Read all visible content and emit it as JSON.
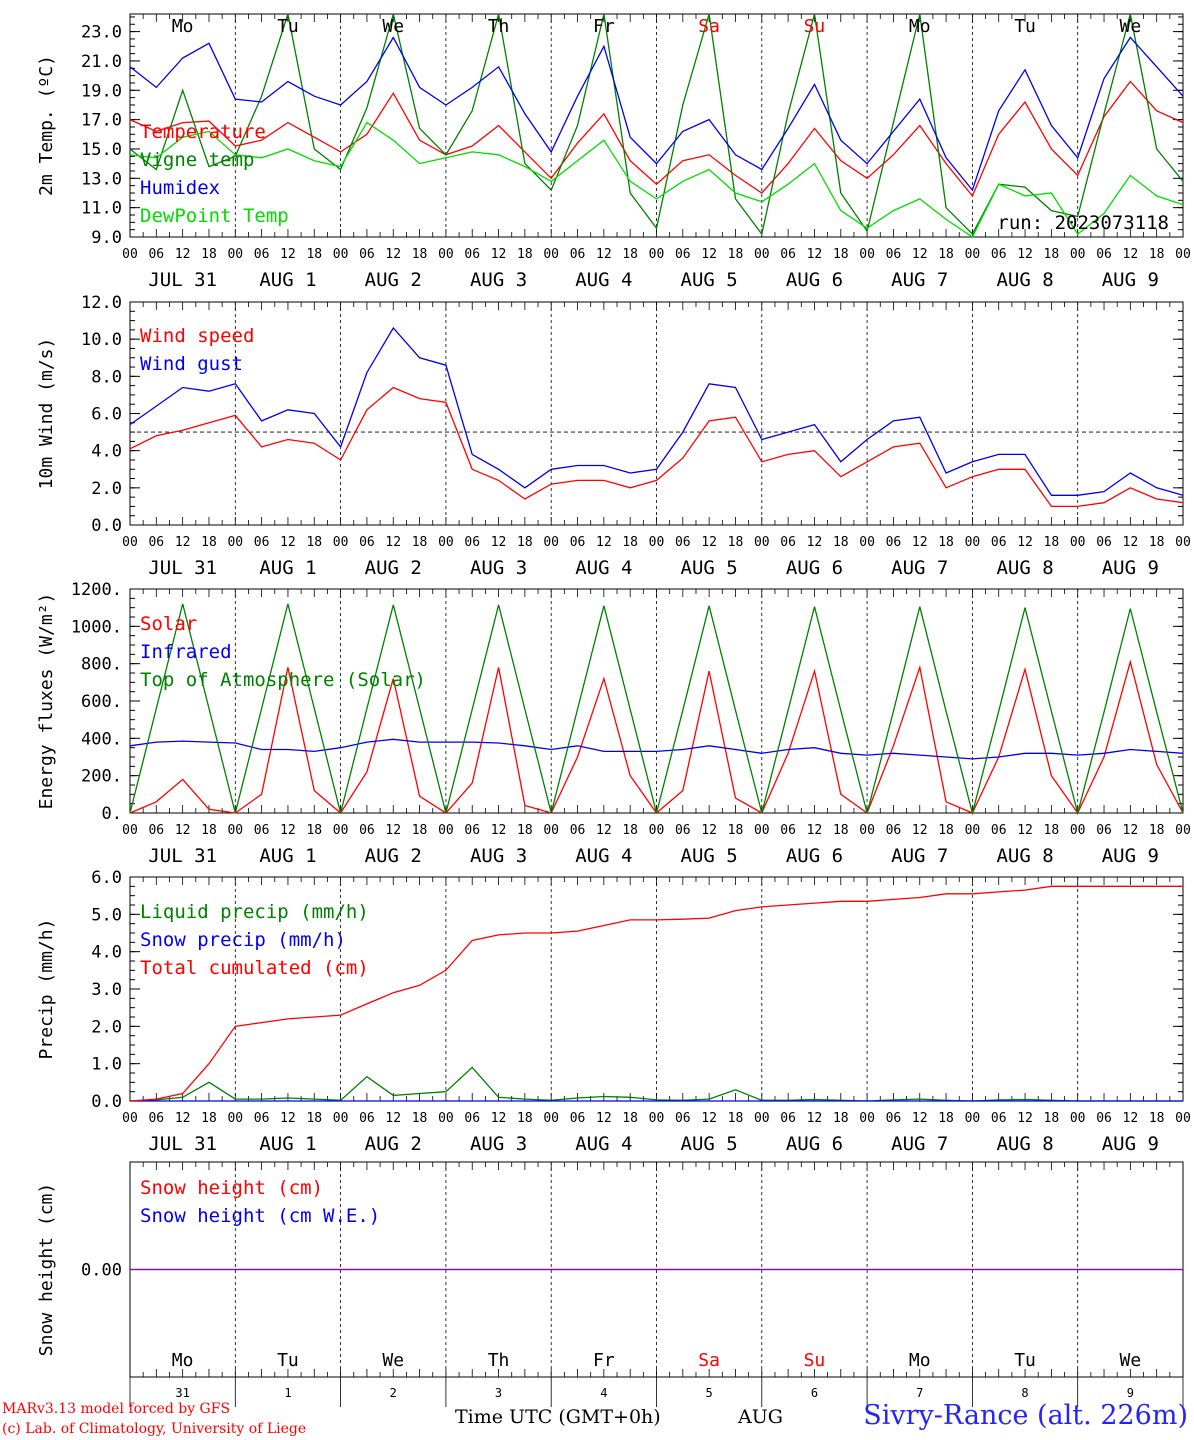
{
  "layout_note": "",
  "colors": {
    "red": "#ff0000",
    "blue": "#0000ee",
    "green": "#008000",
    "lightgreen": "#00dd00",
    "purple": "#9000c0"
  },
  "weekdays": [
    {
      "label": "Mo",
      "weekend": false
    },
    {
      "label": "Tu",
      "weekend": false
    },
    {
      "label": "We",
      "weekend": false
    },
    {
      "label": "Th",
      "weekend": false
    },
    {
      "label": "Fr",
      "weekend": false
    },
    {
      "label": "Sa",
      "weekend": true
    },
    {
      "label": "Su",
      "weekend": true
    },
    {
      "label": "Mo",
      "weekend": false
    },
    {
      "label": "Tu",
      "weekend": false
    },
    {
      "label": "We",
      "weekend": false
    }
  ],
  "day_labels": [
    "JUL 31",
    "AUG  1",
    "AUG  2",
    "AUG  3",
    "AUG  4",
    "AUG  5",
    "AUG  6",
    "AUG  7",
    "AUG  8",
    "AUG  9"
  ],
  "hour_ticks": [
    "00",
    "06",
    "12",
    "18"
  ],
  "day_numbers": [
    "31",
    "1",
    "2",
    "3",
    "4",
    "5",
    "6",
    "7",
    "8",
    "9"
  ],
  "footer": {
    "credit_line1": "MARv3.13 model forced by GFS",
    "credit_line2": "(c) Lab. of Climatology, University of Liege",
    "xlabel": "Time UTC (GMT+0h)",
    "month": "AUG",
    "station": "Sivry-Rance (alt. 226m)"
  },
  "chart_data": [
    {
      "type": "line",
      "title": "",
      "ylabel": "2m Temp. (ºC)",
      "ylim": [
        9.0,
        24.2
      ],
      "yticks": [
        "9.0",
        "11.0",
        "13.0",
        "15.0",
        "17.0",
        "19.0",
        "21.0",
        "23.0"
      ],
      "ytick_values": [
        9,
        11,
        13,
        15,
        17,
        19,
        21,
        23
      ],
      "run_label": "run: 2023073118",
      "x": [
        0,
        6,
        12,
        18,
        24,
        30,
        36,
        42,
        48,
        54,
        60,
        66,
        72,
        78,
        84,
        90,
        96,
        102,
        108,
        114,
        120,
        126,
        132,
        138,
        144,
        150,
        156,
        162,
        168,
        174,
        180,
        186,
        192,
        198,
        204,
        210,
        216,
        222,
        228,
        234,
        240
      ],
      "series": [
        {
          "name": "Temperature",
          "color": "#ff0000",
          "values": [
            17.0,
            16.2,
            16.8,
            16.9,
            15.2,
            15.6,
            16.8,
            15.8,
            14.8,
            16.0,
            18.8,
            15.6,
            14.6,
            15.2,
            16.6,
            14.8,
            13.0,
            15.4,
            17.4,
            14.2,
            12.6,
            14.2,
            14.6,
            13.2,
            12.0,
            14.0,
            16.4,
            14.2,
            13.0,
            14.6,
            16.6,
            14.0,
            11.8,
            16.0,
            18.2,
            15.0,
            13.2,
            17.2,
            19.6,
            17.6,
            16.8
          ]
        },
        {
          "name": "Vigne temp",
          "color": "#008000",
          "values": [
            15.0,
            13.6,
            19.0,
            13.8,
            14.5,
            18.6,
            24.2,
            15.0,
            13.6,
            17.8,
            24.2,
            16.4,
            14.6,
            17.6,
            24.2,
            14.0,
            12.2,
            16.6,
            24.2,
            12.0,
            9.6,
            18.0,
            24.2,
            11.6,
            9.2,
            17.4,
            24.2,
            12.0,
            9.4,
            16.8,
            24.2,
            11.0,
            9.2,
            12.6,
            12.4,
            10.8,
            10.4,
            17.4,
            24.2,
            15.0,
            12.8
          ]
        },
        {
          "name": "Humidex",
          "color": "#0000ee",
          "values": [
            20.6,
            19.2,
            21.2,
            22.2,
            18.4,
            18.2,
            19.6,
            18.6,
            18.0,
            19.6,
            22.6,
            19.2,
            18.0,
            19.2,
            20.6,
            17.4,
            14.8,
            18.6,
            22.0,
            15.8,
            14.0,
            16.2,
            17.0,
            14.6,
            13.6,
            16.4,
            19.4,
            15.6,
            14.0,
            16.2,
            18.4,
            14.4,
            12.2,
            17.6,
            20.4,
            16.6,
            14.4,
            19.8,
            22.6,
            20.6,
            18.6
          ]
        },
        {
          "name": "DewPoint Temp",
          "color": "#00dd00",
          "values": [
            14.6,
            14.4,
            15.8,
            16.2,
            14.6,
            14.4,
            15.0,
            14.2,
            13.8,
            16.8,
            15.6,
            14.0,
            14.4,
            14.8,
            14.6,
            13.8,
            12.8,
            14.2,
            15.6,
            12.8,
            11.6,
            12.8,
            13.6,
            12.0,
            11.4,
            12.6,
            14.0,
            10.8,
            9.6,
            10.8,
            11.6,
            10.2,
            8.8,
            12.6,
            11.8,
            12.0,
            9.2,
            10.6,
            13.2,
            11.8,
            11.2
          ]
        }
      ]
    },
    {
      "type": "line",
      "title": "",
      "ylabel": "10m Wind (m/s)",
      "ylim": [
        0.0,
        12.0
      ],
      "yticks": [
        "0.0",
        "2.0",
        "4.0",
        "6.0",
        "8.0",
        "10.0",
        "12.0"
      ],
      "ytick_values": [
        0,
        2,
        4,
        6,
        8,
        10,
        12
      ],
      "reference_y": 5.0,
      "x": [
        0,
        6,
        12,
        18,
        24,
        30,
        36,
        42,
        48,
        54,
        60,
        66,
        72,
        78,
        84,
        90,
        96,
        102,
        108,
        114,
        120,
        126,
        132,
        138,
        144,
        150,
        156,
        162,
        168,
        174,
        180,
        186,
        192,
        198,
        204,
        210,
        216,
        222,
        228,
        234,
        240
      ],
      "series": [
        {
          "name": "Wind speed",
          "color": "#ff0000",
          "values": [
            4.1,
            4.8,
            5.1,
            5.5,
            5.9,
            4.2,
            4.6,
            4.4,
            3.5,
            6.2,
            7.4,
            6.8,
            6.6,
            3.0,
            2.4,
            1.4,
            2.2,
            2.4,
            2.4,
            2.0,
            2.4,
            3.6,
            5.6,
            5.8,
            3.4,
            3.8,
            4.0,
            2.6,
            3.4,
            4.2,
            4.4,
            2.0,
            2.6,
            3.0,
            3.0,
            1.0,
            1.0,
            1.2,
            2.0,
            1.4,
            1.2
          ]
        },
        {
          "name": "Wind gust",
          "color": "#0000ee",
          "values": [
            5.4,
            6.4,
            7.4,
            7.2,
            7.6,
            5.6,
            6.2,
            6.0,
            4.2,
            8.2,
            10.6,
            9.0,
            8.6,
            3.8,
            3.0,
            2.0,
            3.0,
            3.2,
            3.2,
            2.8,
            3.0,
            5.0,
            7.6,
            7.4,
            4.6,
            5.0,
            5.4,
            3.4,
            4.6,
            5.6,
            5.8,
            2.8,
            3.4,
            3.8,
            3.8,
            1.6,
            1.6,
            1.8,
            2.8,
            2.0,
            1.6
          ]
        }
      ]
    },
    {
      "type": "line",
      "title": "",
      "ylabel": "Energy fluxes (W/m²)",
      "ylim": [
        0,
        1200
      ],
      "yticks": [
        "0.",
        "200.",
        "400.",
        "600.",
        "800.",
        "1000.",
        "1200."
      ],
      "ytick_values": [
        0,
        200,
        400,
        600,
        800,
        1000,
        1200
      ],
      "x": [
        0,
        6,
        12,
        18,
        24,
        30,
        36,
        42,
        48,
        54,
        60,
        66,
        72,
        78,
        84,
        90,
        96,
        102,
        108,
        114,
        120,
        126,
        132,
        138,
        144,
        150,
        156,
        162,
        168,
        174,
        180,
        186,
        192,
        198,
        204,
        210,
        216,
        222,
        228,
        234,
        240
      ],
      "series": [
        {
          "name": "Solar",
          "color": "#ff0000",
          "values": [
            0,
            60,
            180,
            20,
            0,
            100,
            780,
            120,
            0,
            220,
            720,
            90,
            0,
            160,
            780,
            40,
            0,
            300,
            720,
            200,
            0,
            120,
            760,
            80,
            0,
            320,
            760,
            100,
            0,
            360,
            780,
            60,
            0,
            300,
            770,
            200,
            0,
            300,
            810,
            260,
            0
          ]
        },
        {
          "name": "Infrared",
          "color": "#0000ee",
          "values": [
            360,
            380,
            385,
            380,
            375,
            340,
            340,
            330,
            350,
            380,
            395,
            380,
            380,
            380,
            375,
            360,
            340,
            360,
            330,
            330,
            330,
            340,
            360,
            340,
            320,
            340,
            350,
            320,
            310,
            320,
            310,
            300,
            290,
            300,
            320,
            320,
            310,
            320,
            340,
            330,
            320
          ]
        },
        {
          "name": "Top of Atmosphere (Solar)",
          "color": "#008000",
          "values": [
            0,
            560,
            1120,
            560,
            0,
            560,
            1120,
            560,
            0,
            560,
            1115,
            560,
            0,
            555,
            1115,
            555,
            0,
            555,
            1110,
            555,
            0,
            550,
            1110,
            550,
            0,
            550,
            1105,
            550,
            0,
            545,
            1105,
            545,
            0,
            545,
            1100,
            545,
            0,
            540,
            1095,
            540,
            0
          ]
        }
      ]
    },
    {
      "type": "line",
      "title": "",
      "ylabel": "Precip (mm/h)",
      "ylim": [
        0.0,
        6.0
      ],
      "yticks": [
        "0.0",
        "1.0",
        "2.0",
        "3.0",
        "4.0",
        "5.0",
        "6.0"
      ],
      "ytick_values": [
        0,
        1,
        2,
        3,
        4,
        5,
        6
      ],
      "x": [
        0,
        6,
        12,
        18,
        24,
        30,
        36,
        42,
        48,
        54,
        60,
        66,
        72,
        78,
        84,
        90,
        96,
        102,
        108,
        114,
        120,
        126,
        132,
        138,
        144,
        150,
        156,
        162,
        168,
        174,
        180,
        186,
        192,
        198,
        204,
        210,
        216,
        222,
        228,
        234,
        240
      ],
      "series": [
        {
          "name": "Liquid precip (mm/h)",
          "color": "#008000",
          "values": [
            0,
            0.03,
            0.1,
            0.5,
            0.05,
            0.05,
            0.08,
            0.05,
            0.02,
            0.65,
            0.15,
            0.2,
            0.25,
            0.9,
            0.1,
            0.05,
            0.02,
            0.08,
            0.12,
            0.1,
            0.03,
            0.02,
            0.05,
            0.3,
            0.02,
            0.02,
            0.04,
            0.02,
            0.0,
            0.03,
            0.05,
            0.02,
            0.0,
            0.03,
            0.04,
            0.02,
            0.0,
            0.0,
            0.0,
            0.0,
            0.0
          ]
        },
        {
          "name": "Snow precip (mm/h)",
          "color": "#0000ee",
          "values": [
            0,
            0,
            0,
            0,
            0,
            0,
            0,
            0,
            0,
            0,
            0,
            0,
            0,
            0,
            0,
            0,
            0,
            0,
            0,
            0,
            0,
            0,
            0,
            0,
            0,
            0,
            0,
            0,
            0,
            0,
            0,
            0,
            0,
            0,
            0,
            0,
            0,
            0,
            0,
            0,
            0
          ]
        },
        {
          "name": "Total cumulated (cm)",
          "color": "#ff0000",
          "values": [
            0,
            0.05,
            0.2,
            1.0,
            2.0,
            2.1,
            2.2,
            2.25,
            2.3,
            2.6,
            2.9,
            3.1,
            3.5,
            4.3,
            4.45,
            4.5,
            4.5,
            4.55,
            4.7,
            4.85,
            4.85,
            4.87,
            4.9,
            5.1,
            5.2,
            5.25,
            5.3,
            5.35,
            5.35,
            5.4,
            5.45,
            5.55,
            5.55,
            5.6,
            5.65,
            5.75,
            5.75,
            5.75,
            5.75,
            5.75,
            5.75
          ]
        }
      ]
    },
    {
      "type": "line",
      "title": "",
      "ylabel": "Snow height (cm)",
      "ylim": [
        -1,
        1
      ],
      "yticks": [
        "0.00"
      ],
      "ytick_values": [
        0
      ],
      "x": [
        0,
        240
      ],
      "series": [
        {
          "name": "Snow height (cm)",
          "color": "#ff0000",
          "values": [
            0,
            0
          ]
        },
        {
          "name": "Snow height (cm W.E.)",
          "color": "#0000ee",
          "values": [
            0,
            0
          ]
        }
      ]
    }
  ]
}
